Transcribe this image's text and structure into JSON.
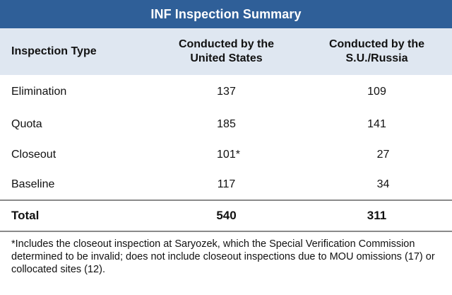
{
  "title": "INF Inspection Summary",
  "header": {
    "col1": "Inspection Type",
    "col2": [
      "Conducted by the",
      "United States"
    ],
    "col3": [
      "Conducted by the",
      "S.U./Russia"
    ]
  },
  "rows": [
    {
      "type": "Elimination",
      "us": "137",
      "ru": "109"
    },
    {
      "type": "Quota",
      "us": "185",
      "ru": "141"
    },
    {
      "type": "Closeout",
      "us": "101*",
      "ru": "27"
    },
    {
      "type": "Baseline",
      "us": "117",
      "ru": "34"
    }
  ],
  "total": {
    "type": "Total",
    "us": "540",
    "ru": "311"
  },
  "footnote": "*Includes the closeout inspection at Saryozek, which the Special Verification Commission determined to be invalid; does not include closeout inspections due to MOU omissions (17) or collocated sites (12).",
  "colors": {
    "title_bg": "#2f5f98",
    "header_bg": "#dfe7f1"
  }
}
